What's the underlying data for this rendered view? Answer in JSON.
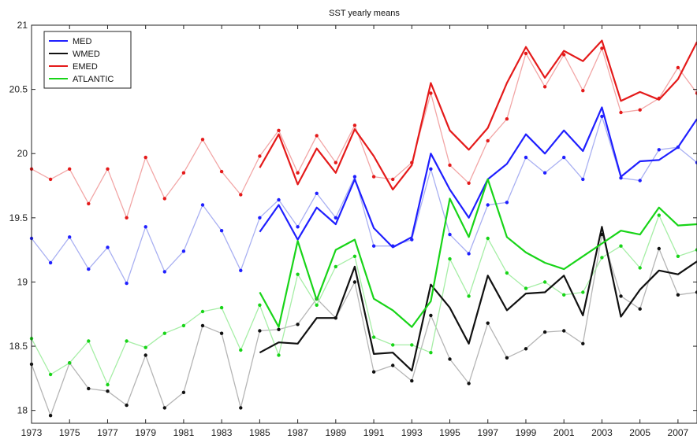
{
  "chart_data": {
    "type": "line",
    "title": "SST yearly means",
    "xlabel": "",
    "ylabel": "",
    "xlim": [
      1973,
      2008
    ],
    "ylim": [
      17.9,
      21
    ],
    "x_ticks": [
      1973,
      1975,
      1977,
      1979,
      1981,
      1983,
      1985,
      1987,
      1989,
      1991,
      1993,
      1995,
      1997,
      1999,
      2001,
      2003,
      2005,
      2007
    ],
    "y_ticks": [
      18,
      18.5,
      19,
      19.5,
      20,
      20.5,
      21
    ],
    "grid": false,
    "legend_position": "top-left",
    "series": [
      {
        "name": "MED",
        "color": "#1f1fff",
        "light_color": "#a9b0f2",
        "style": "thick",
        "x": [
          1985,
          1986,
          1987,
          1988,
          1989,
          1990,
          1991,
          1992,
          1993,
          1994,
          1995,
          1996,
          1997,
          1998,
          1999,
          2000,
          2001,
          2002,
          2003,
          2004,
          2005,
          2006,
          2007,
          2008
        ],
        "values": [
          19.39,
          19.6,
          19.33,
          19.58,
          19.45,
          19.8,
          19.42,
          19.27,
          19.35,
          20.0,
          19.72,
          19.5,
          19.8,
          19.92,
          20.15,
          20.0,
          20.18,
          20.02,
          20.36,
          19.82,
          19.94,
          19.95,
          20.05,
          20.27
        ]
      },
      {
        "name": "WMED",
        "color": "#111111",
        "light_color": "#b5b5b5",
        "style": "thick",
        "x": [
          1985,
          1986,
          1987,
          1988,
          1989,
          1990,
          1991,
          1992,
          1993,
          1994,
          1995,
          1996,
          1997,
          1998,
          1999,
          2000,
          2001,
          2002,
          2003,
          2004,
          2005,
          2006,
          2007,
          2008
        ],
        "values": [
          18.45,
          18.53,
          18.52,
          18.72,
          18.72,
          19.12,
          18.44,
          18.45,
          18.31,
          18.98,
          18.8,
          18.52,
          19.05,
          18.78,
          18.91,
          18.92,
          19.05,
          18.74,
          19.43,
          18.73,
          18.94,
          19.09,
          19.06,
          19.16
        ]
      },
      {
        "name": "EMED",
        "color": "#e41a1a",
        "light_color": "#f2a6a6",
        "style": "thick",
        "x": [
          1985,
          1986,
          1987,
          1988,
          1989,
          1990,
          1991,
          1992,
          1993,
          1994,
          1995,
          1996,
          1997,
          1998,
          1999,
          2000,
          2001,
          2002,
          2003,
          2004,
          2005,
          2006,
          2007,
          2008
        ],
        "values": [
          19.89,
          20.15,
          19.76,
          20.04,
          19.85,
          20.19,
          19.98,
          19.72,
          19.91,
          20.55,
          20.18,
          20.03,
          20.2,
          20.55,
          20.83,
          20.59,
          20.8,
          20.72,
          20.88,
          20.41,
          20.48,
          20.42,
          20.58,
          20.87
        ]
      },
      {
        "name": "ATLANTIC",
        "color": "#18d418",
        "light_color": "#a6eea6",
        "style": "thick",
        "x": [
          1985,
          1986,
          1987,
          1988,
          1989,
          1990,
          1991,
          1992,
          1993,
          1994,
          1995,
          1996,
          1997,
          1998,
          1999,
          2000,
          2001,
          2002,
          2003,
          2004,
          2005,
          2006,
          2007,
          2008
        ],
        "values": [
          18.92,
          18.65,
          19.32,
          18.86,
          19.25,
          19.33,
          18.87,
          18.78,
          18.65,
          18.85,
          19.65,
          19.35,
          19.8,
          19.35,
          19.23,
          19.15,
          19.1,
          19.2,
          19.3,
          19.4,
          19.37,
          19.58,
          19.44,
          19.45
        ]
      },
      {
        "name": "",
        "color": "#a9b0f2",
        "style": "thin-markers",
        "x": [
          1973,
          1974,
          1975,
          1976,
          1977,
          1978,
          1979,
          1980,
          1981,
          1982,
          1983,
          1984,
          1985,
          1986,
          1987,
          1988,
          1989,
          1990,
          1991,
          1992,
          1993,
          1994,
          1995,
          1996,
          1997,
          1998,
          1999,
          2000,
          2001,
          2002,
          2003,
          2004,
          2005,
          2006,
          2007,
          2008
        ],
        "values": [
          19.34,
          19.15,
          19.35,
          19.1,
          19.27,
          18.99,
          19.43,
          19.08,
          19.24,
          19.6,
          19.4,
          19.09,
          19.5,
          19.64,
          19.43,
          19.69,
          19.5,
          19.82,
          19.28,
          19.28,
          19.33,
          19.88,
          19.37,
          19.22,
          19.6,
          19.62,
          19.97,
          19.85,
          19.97,
          19.8,
          20.29,
          19.81,
          19.79,
          20.03,
          20.05,
          19.93
        ]
      },
      {
        "name": "",
        "color": "#b5b5b5",
        "style": "thin-markers",
        "x": [
          1973,
          1974,
          1975,
          1976,
          1977,
          1978,
          1979,
          1980,
          1981,
          1982,
          1983,
          1984,
          1985,
          1986,
          1987,
          1988,
          1989,
          1990,
          1991,
          1992,
          1993,
          1994,
          1995,
          1996,
          1997,
          1998,
          1999,
          2000,
          2001,
          2002,
          2003,
          2004,
          2005,
          2006,
          2007,
          2008
        ],
        "values": [
          18.36,
          17.96,
          18.37,
          18.17,
          18.15,
          18.04,
          18.43,
          18.02,
          18.14,
          18.66,
          18.6,
          18.02,
          18.62,
          18.63,
          18.67,
          18.87,
          18.72,
          19.0,
          18.3,
          18.35,
          18.23,
          18.74,
          18.4,
          18.21,
          18.68,
          18.41,
          18.48,
          18.61,
          18.62,
          18.52,
          19.37,
          18.89,
          18.79,
          19.26,
          18.9,
          18.92
        ]
      },
      {
        "name": "",
        "color": "#f2a6a6",
        "style": "thin-markers",
        "x": [
          1973,
          1974,
          1975,
          1976,
          1977,
          1978,
          1979,
          1980,
          1981,
          1982,
          1983,
          1984,
          1985,
          1986,
          1987,
          1988,
          1989,
          1990,
          1991,
          1992,
          1993,
          1994,
          1995,
          1996,
          1997,
          1998,
          1999,
          2000,
          2001,
          2002,
          2003,
          2004,
          2005,
          2006,
          2007,
          2008
        ],
        "values": [
          19.88,
          19.8,
          19.88,
          19.61,
          19.88,
          19.5,
          19.97,
          19.65,
          19.85,
          20.11,
          19.86,
          19.68,
          19.98,
          20.18,
          19.85,
          20.14,
          19.93,
          20.22,
          19.82,
          19.8,
          19.93,
          20.47,
          19.91,
          19.77,
          20.1,
          20.27,
          20.78,
          20.52,
          20.77,
          20.49,
          20.82,
          20.32,
          20.34,
          20.43,
          20.67,
          20.47
        ]
      },
      {
        "name": "",
        "color": "#a6eea6",
        "style": "thin-markers",
        "x": [
          1973,
          1974,
          1975,
          1976,
          1977,
          1978,
          1979,
          1980,
          1981,
          1982,
          1983,
          1984,
          1985,
          1986,
          1987,
          1988,
          1989,
          1990,
          1991,
          1992,
          1993,
          1994,
          1995,
          1996,
          1997,
          1998,
          1999,
          2000,
          2001,
          2002,
          2003,
          2004,
          2005,
          2006,
          2007,
          2008
        ],
        "values": [
          18.56,
          18.28,
          18.37,
          18.54,
          18.2,
          18.54,
          18.49,
          18.6,
          18.66,
          18.77,
          18.8,
          18.47,
          18.82,
          18.43,
          19.06,
          18.82,
          19.12,
          19.2,
          18.57,
          18.51,
          18.51,
          18.45,
          19.18,
          18.89,
          19.34,
          19.07,
          18.95,
          19.0,
          18.9,
          18.92,
          19.19,
          19.28,
          19.11,
          19.52,
          19.2,
          19.25
        ]
      }
    ]
  }
}
